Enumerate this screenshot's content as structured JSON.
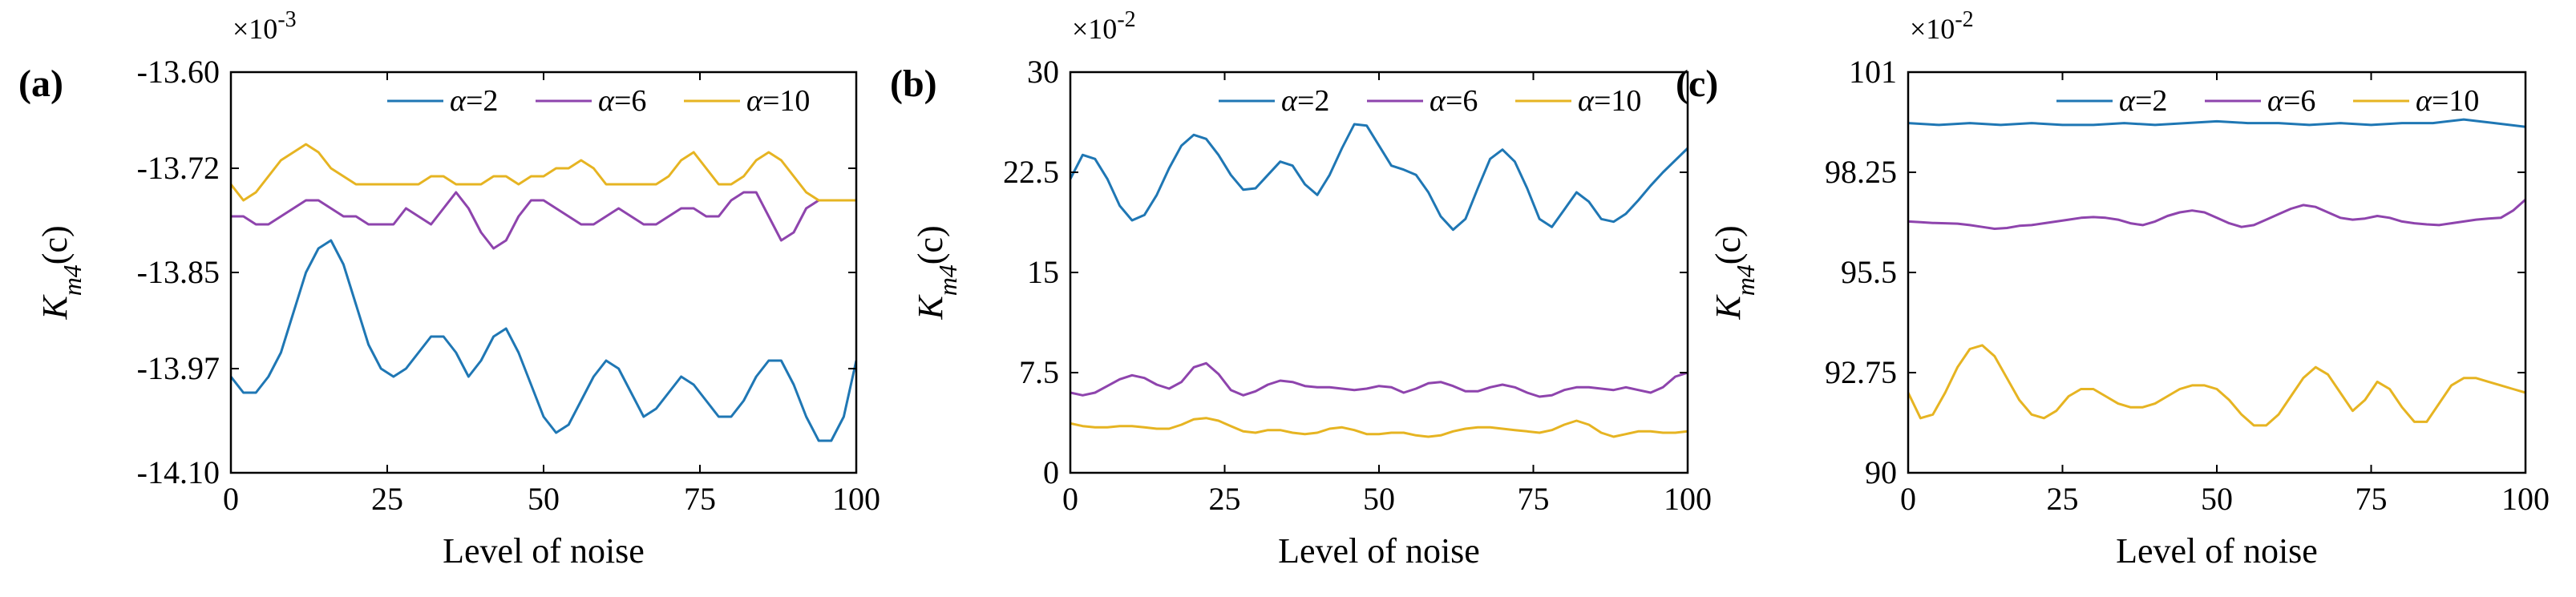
{
  "chart_data": [
    {
      "type": "line",
      "panel_label": "(a)",
      "multiplier": "×10-3",
      "multiplier_base": "×10",
      "multiplier_exp": "-3",
      "xlabel": "Level of noise",
      "ylabel_main": "K",
      "ylabel_sub": "m4",
      "ylabel_arg": "(c)",
      "xlim": [
        0,
        100
      ],
      "ylim": [
        -14.1,
        -13.6
      ],
      "xticks": [
        0,
        25,
        50,
        75,
        100
      ],
      "xtick_labels": [
        "0",
        "25",
        "50",
        "75",
        "100"
      ],
      "yticks": [
        -14.1,
        -13.97,
        -13.85,
        -13.72,
        -13.6
      ],
      "ytick_labels": [
        "-14.10",
        "-13.97",
        "-13.85",
        "-13.72",
        "-13.60"
      ],
      "legend_position": "top-right",
      "series": [
        {
          "name": "α=2",
          "name_greek": "α",
          "name_value": "=2",
          "color": "#1f77b4",
          "x": [
            0,
            2,
            4,
            6,
            8,
            10,
            12,
            14,
            16,
            18,
            20,
            22,
            24,
            26,
            28,
            30,
            32,
            34,
            36,
            38,
            40,
            42,
            44,
            46,
            48,
            50,
            52,
            54,
            56,
            58,
            60,
            62,
            64,
            66,
            68,
            70,
            72,
            74,
            76,
            78,
            80,
            82,
            84,
            86,
            88,
            90,
            92,
            94,
            96,
            98,
            100
          ],
          "y": [
            -13.98,
            -14.0,
            -14.0,
            -13.98,
            -13.95,
            -13.9,
            -13.85,
            -13.82,
            -13.81,
            -13.84,
            -13.89,
            -13.94,
            -13.97,
            -13.98,
            -13.97,
            -13.95,
            -13.93,
            -13.93,
            -13.95,
            -13.98,
            -13.96,
            -13.93,
            -13.92,
            -13.95,
            -13.99,
            -14.03,
            -14.05,
            -14.04,
            -14.01,
            -13.98,
            -13.96,
            -13.97,
            -14.0,
            -14.03,
            -14.02,
            -14.0,
            -13.98,
            -13.99,
            -14.01,
            -14.03,
            -14.03,
            -14.01,
            -13.98,
            -13.96,
            -13.96,
            -13.99,
            -14.03,
            -14.06,
            -14.06,
            -14.03,
            -13.96
          ]
        },
        {
          "name": "α=6",
          "name_greek": "α",
          "name_value": "=6",
          "color": "#8e44ad",
          "x": [
            0,
            2,
            4,
            6,
            8,
            10,
            12,
            14,
            16,
            18,
            20,
            22,
            24,
            26,
            28,
            30,
            32,
            34,
            36,
            38,
            40,
            42,
            44,
            46,
            48,
            50,
            52,
            54,
            56,
            58,
            60,
            62,
            64,
            66,
            68,
            70,
            72,
            74,
            76,
            78,
            80,
            82,
            84,
            86,
            88,
            90,
            92,
            94,
            96,
            98,
            100
          ],
          "y": [
            -13.78,
            -13.78,
            -13.79,
            -13.79,
            -13.78,
            -13.77,
            -13.76,
            -13.76,
            -13.77,
            -13.78,
            -13.78,
            -13.79,
            -13.79,
            -13.79,
            -13.77,
            -13.78,
            -13.79,
            -13.77,
            -13.75,
            -13.77,
            -13.8,
            -13.82,
            -13.81,
            -13.78,
            -13.76,
            -13.76,
            -13.77,
            -13.78,
            -13.79,
            -13.79,
            -13.78,
            -13.77,
            -13.78,
            -13.79,
            -13.79,
            -13.78,
            -13.77,
            -13.77,
            -13.78,
            -13.78,
            -13.76,
            -13.75,
            -13.75,
            -13.78,
            -13.81,
            -13.8,
            -13.77,
            -13.76,
            -13.76,
            -13.76,
            -13.76
          ]
        },
        {
          "name": "α=10",
          "name_greek": "α",
          "name_value": "=10",
          "color": "#e6b422",
          "x": [
            0,
            2,
            4,
            6,
            8,
            10,
            12,
            14,
            16,
            18,
            20,
            22,
            24,
            26,
            28,
            30,
            32,
            34,
            36,
            38,
            40,
            42,
            44,
            46,
            48,
            50,
            52,
            54,
            56,
            58,
            60,
            62,
            64,
            66,
            68,
            70,
            72,
            74,
            76,
            78,
            80,
            82,
            84,
            86,
            88,
            90,
            92,
            94,
            96,
            98,
            100
          ],
          "y": [
            -13.74,
            -13.76,
            -13.75,
            -13.73,
            -13.71,
            -13.7,
            -13.69,
            -13.7,
            -13.72,
            -13.73,
            -13.74,
            -13.74,
            -13.74,
            -13.74,
            -13.74,
            -13.74,
            -13.73,
            -13.73,
            -13.74,
            -13.74,
            -13.74,
            -13.73,
            -13.73,
            -13.74,
            -13.73,
            -13.73,
            -13.72,
            -13.72,
            -13.71,
            -13.72,
            -13.74,
            -13.74,
            -13.74,
            -13.74,
            -13.74,
            -13.73,
            -13.71,
            -13.7,
            -13.72,
            -13.74,
            -13.74,
            -13.73,
            -13.71,
            -13.7,
            -13.71,
            -13.73,
            -13.75,
            -13.76,
            -13.76,
            -13.76,
            -13.76
          ]
        }
      ]
    },
    {
      "type": "line",
      "panel_label": "(b)",
      "multiplier": "×10-2",
      "multiplier_base": "×10",
      "multiplier_exp": "-2",
      "xlabel": "Level of noise",
      "ylabel_main": "K",
      "ylabel_sub": "m4",
      "ylabel_arg": "(c)",
      "xlim": [
        0,
        100
      ],
      "ylim": [
        0,
        30
      ],
      "xticks": [
        0,
        25,
        50,
        75,
        100
      ],
      "xtick_labels": [
        "0",
        "25",
        "50",
        "75",
        "100"
      ],
      "yticks": [
        0,
        7.5,
        15,
        22.5,
        30
      ],
      "ytick_labels": [
        "0",
        "7.5",
        "15",
        "22.5",
        "30"
      ],
      "legend_position": "top-right",
      "series": [
        {
          "name": "α=2",
          "name_greek": "α",
          "name_value": "=2",
          "color": "#1f77b4",
          "x": [
            0,
            2,
            4,
            6,
            8,
            10,
            12,
            14,
            16,
            18,
            20,
            22,
            24,
            26,
            28,
            30,
            32,
            34,
            36,
            38,
            40,
            42,
            44,
            46,
            48,
            50,
            52,
            54,
            56,
            58,
            60,
            62,
            64,
            66,
            68,
            70,
            72,
            74,
            76,
            78,
            80,
            82,
            84,
            86,
            88,
            90,
            92,
            94,
            96,
            98,
            100
          ],
          "y": [
            22.0,
            23.8,
            23.5,
            22.0,
            20.0,
            18.9,
            19.3,
            20.8,
            22.8,
            24.5,
            25.3,
            25.0,
            23.8,
            22.3,
            21.2,
            21.3,
            22.3,
            23.3,
            23.0,
            21.6,
            20.8,
            22.3,
            24.3,
            26.1,
            26.0,
            24.5,
            23.0,
            22.7,
            22.3,
            21.0,
            19.2,
            18.2,
            19.0,
            21.3,
            23.5,
            24.2,
            23.3,
            21.3,
            19.0,
            18.4,
            19.7,
            21.0,
            20.3,
            19.0,
            18.8,
            19.4,
            20.4,
            21.5,
            22.5,
            23.4,
            24.3
          ]
        },
        {
          "name": "α=6",
          "name_greek": "α",
          "name_value": "=6",
          "color": "#8e44ad",
          "x": [
            0,
            2,
            4,
            6,
            8,
            10,
            12,
            14,
            16,
            18,
            20,
            22,
            24,
            26,
            28,
            30,
            32,
            34,
            36,
            38,
            40,
            42,
            44,
            46,
            48,
            50,
            52,
            54,
            56,
            58,
            60,
            62,
            64,
            66,
            68,
            70,
            72,
            74,
            76,
            78,
            80,
            82,
            84,
            86,
            88,
            90,
            92,
            94,
            96,
            98,
            100
          ],
          "y": [
            6.0,
            5.8,
            6.0,
            6.5,
            7.0,
            7.3,
            7.1,
            6.6,
            6.3,
            6.8,
            7.9,
            8.2,
            7.4,
            6.2,
            5.8,
            6.1,
            6.6,
            6.9,
            6.8,
            6.5,
            6.4,
            6.4,
            6.3,
            6.2,
            6.3,
            6.5,
            6.4,
            6.0,
            6.3,
            6.7,
            6.8,
            6.5,
            6.1,
            6.1,
            6.4,
            6.6,
            6.4,
            6.0,
            5.7,
            5.8,
            6.2,
            6.4,
            6.4,
            6.3,
            6.2,
            6.4,
            6.2,
            6.0,
            6.4,
            7.2,
            7.5
          ]
        },
        {
          "name": "α=10",
          "name_greek": "α",
          "name_value": "=10",
          "color": "#e6b422",
          "x": [
            0,
            2,
            4,
            6,
            8,
            10,
            12,
            14,
            16,
            18,
            20,
            22,
            24,
            26,
            28,
            30,
            32,
            34,
            36,
            38,
            40,
            42,
            44,
            46,
            48,
            50,
            52,
            54,
            56,
            58,
            60,
            62,
            64,
            66,
            68,
            70,
            72,
            74,
            76,
            78,
            80,
            82,
            84,
            86,
            88,
            90,
            92,
            94,
            96,
            98,
            100
          ],
          "y": [
            3.7,
            3.5,
            3.4,
            3.4,
            3.5,
            3.5,
            3.4,
            3.3,
            3.3,
            3.6,
            4.0,
            4.1,
            3.9,
            3.5,
            3.1,
            3.0,
            3.2,
            3.2,
            3.0,
            2.9,
            3.0,
            3.3,
            3.4,
            3.2,
            2.9,
            2.9,
            3.0,
            3.0,
            2.8,
            2.7,
            2.8,
            3.1,
            3.3,
            3.4,
            3.4,
            3.3,
            3.2,
            3.1,
            3.0,
            3.2,
            3.6,
            3.9,
            3.6,
            3.0,
            2.7,
            2.9,
            3.1,
            3.1,
            3.0,
            3.0,
            3.1
          ]
        }
      ]
    },
    {
      "type": "line",
      "panel_label": "(c)",
      "multiplier": "×10-2",
      "multiplier_base": "×10",
      "multiplier_exp": "-2",
      "xlabel": "Level of noise",
      "ylabel_main": "K",
      "ylabel_sub": "m4",
      "ylabel_arg": "(c)",
      "xlim": [
        0,
        100
      ],
      "ylim": [
        90,
        101
      ],
      "xticks": [
        0,
        25,
        50,
        75,
        100
      ],
      "xtick_labels": [
        "0",
        "25",
        "50",
        "75",
        "100"
      ],
      "yticks": [
        90,
        92.75,
        95.5,
        98.25,
        101
      ],
      "ytick_labels": [
        "90",
        "92.75",
        "95.5",
        "98.25",
        "101"
      ],
      "legend_position": "top-right",
      "series": [
        {
          "name": "α=2",
          "name_greek": "α",
          "name_value": "=2",
          "color": "#1f77b4",
          "x": [
            0,
            5,
            10,
            15,
            20,
            25,
            30,
            35,
            40,
            45,
            50,
            55,
            60,
            65,
            70,
            75,
            80,
            85,
            90,
            95,
            100
          ],
          "y": [
            99.6,
            99.55,
            99.6,
            99.55,
            99.6,
            99.55,
            99.55,
            99.6,
            99.55,
            99.6,
            99.65,
            99.6,
            99.6,
            99.55,
            99.6,
            99.55,
            99.6,
            99.6,
            99.7,
            99.6,
            99.5
          ]
        },
        {
          "name": "α=6",
          "name_greek": "α",
          "name_value": "=6",
          "color": "#8e44ad",
          "x": [
            0,
            2,
            4,
            6,
            8,
            10,
            12,
            14,
            16,
            18,
            20,
            22,
            24,
            26,
            28,
            30,
            32,
            34,
            36,
            38,
            40,
            42,
            44,
            46,
            48,
            50,
            52,
            54,
            56,
            58,
            60,
            62,
            64,
            66,
            68,
            70,
            72,
            74,
            76,
            78,
            80,
            82,
            84,
            86,
            88,
            90,
            92,
            94,
            96,
            98,
            100
          ],
          "y": [
            96.9,
            96.88,
            96.86,
            96.85,
            96.84,
            96.8,
            96.75,
            96.7,
            96.72,
            96.78,
            96.8,
            96.85,
            96.9,
            96.95,
            97.0,
            97.02,
            97.0,
            96.95,
            96.85,
            96.8,
            96.9,
            97.05,
            97.15,
            97.2,
            97.15,
            97.0,
            96.85,
            96.75,
            96.8,
            96.95,
            97.1,
            97.25,
            97.35,
            97.3,
            97.15,
            97.0,
            96.95,
            96.98,
            97.05,
            97.0,
            96.9,
            96.85,
            96.82,
            96.8,
            96.85,
            96.9,
            96.95,
            96.98,
            97.0,
            97.2,
            97.5
          ]
        },
        {
          "name": "α=10",
          "name_greek": "α",
          "name_value": "=10",
          "color": "#e6b422",
          "x": [
            0,
            2,
            4,
            6,
            8,
            10,
            12,
            14,
            16,
            18,
            20,
            22,
            24,
            26,
            28,
            30,
            32,
            34,
            36,
            38,
            40,
            42,
            44,
            46,
            48,
            50,
            52,
            54,
            56,
            58,
            60,
            62,
            64,
            66,
            68,
            70,
            72,
            74,
            76,
            78,
            80,
            82,
            84,
            86,
            88,
            90,
            92,
            94,
            96,
            98,
            100
          ],
          "y": [
            92.2,
            91.5,
            91.6,
            92.2,
            92.9,
            93.4,
            93.5,
            93.2,
            92.6,
            92.0,
            91.6,
            91.5,
            91.7,
            92.1,
            92.3,
            92.3,
            92.1,
            91.9,
            91.8,
            91.8,
            91.9,
            92.1,
            92.3,
            92.4,
            92.4,
            92.3,
            92.0,
            91.6,
            91.3,
            91.3,
            91.6,
            92.1,
            92.6,
            92.9,
            92.7,
            92.2,
            91.7,
            92.0,
            92.5,
            92.3,
            91.8,
            91.4,
            91.4,
            91.9,
            92.4,
            92.6,
            92.6,
            92.5,
            92.4,
            92.3,
            92.2
          ]
        }
      ]
    }
  ]
}
